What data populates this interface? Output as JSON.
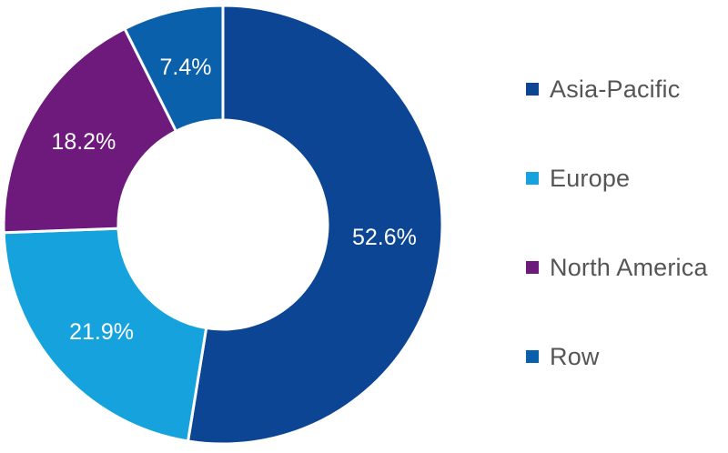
{
  "chart_data": {
    "type": "pie",
    "variant": "donut",
    "title": "",
    "categories": [
      "Asia-Pacific",
      "Europe",
      "North America",
      "Row"
    ],
    "values": [
      52.6,
      21.9,
      18.2,
      7.4
    ],
    "labels": [
      "52.6%",
      "21.9%",
      "18.2%",
      "7.4%"
    ],
    "colors": [
      "#0b4594",
      "#16a3dd",
      "#6e1a7c",
      "#0a60aa"
    ],
    "legend_position": "right",
    "start_angle_deg": 0,
    "direction": "clockwise"
  },
  "legend": {
    "items": [
      {
        "label": "Asia-Pacific",
        "color": "#0b4594"
      },
      {
        "label": "Europe",
        "color": "#16a3dd"
      },
      {
        "label": "North America",
        "color": "#6e1a7c"
      },
      {
        "label": "Row",
        "color": "#0a60aa"
      }
    ]
  }
}
